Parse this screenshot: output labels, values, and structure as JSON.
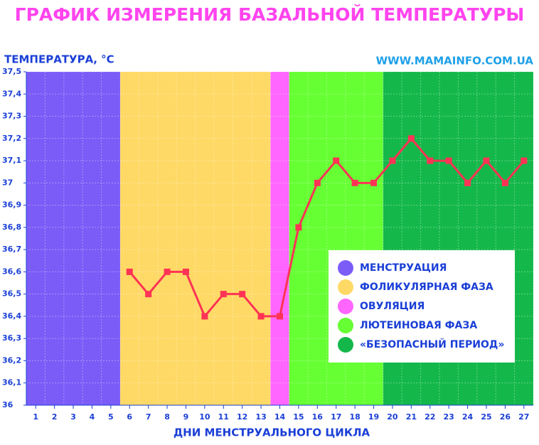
{
  "chart_data": {
    "type": "line",
    "title": "ГРАФИК ИЗМЕРЕНИЯ БАЗАЛЬНОЙ ТЕМПЕРАТУРЫ",
    "y_label": "ТЕМПЕРАТУРА, °С",
    "x_label": "ДНИ МЕНСТРУАЛЬНОГО ЦИКЛА",
    "source": "WWW.MAMAINFO.COM.UA",
    "x": [
      1,
      2,
      3,
      4,
      5,
      6,
      7,
      8,
      9,
      10,
      11,
      12,
      13,
      14,
      15,
      16,
      17,
      18,
      19,
      20,
      21,
      22,
      23,
      24,
      25,
      26,
      27
    ],
    "xlim": [
      0.5,
      27.5
    ],
    "series": [
      {
        "name": "Температура",
        "color": "#ff3355",
        "values": [
          null,
          null,
          null,
          null,
          null,
          36.6,
          36.5,
          36.6,
          36.6,
          36.4,
          36.5,
          36.5,
          36.4,
          36.4,
          36.8,
          37.0,
          37.1,
          37.0,
          37.0,
          37.1,
          37.2,
          37.1,
          37.1,
          37.0,
          37.1,
          37.0,
          37.1
        ]
      }
    ],
    "ylim": [
      36,
      37.5
    ],
    "yticks": [
      36,
      {
        "value": 36.1,
        "label": "36,1"
      },
      {
        "value": 36.2,
        "label": "36,2"
      },
      {
        "value": 36.3,
        "label": "36,3"
      },
      {
        "value": 36.4,
        "label": "36,4"
      },
      {
        "value": 36.5,
        "label": "36,5"
      },
      {
        "value": 36.6,
        "label": "36,6"
      },
      {
        "value": 36.7,
        "label": "36,7"
      },
      {
        "value": 36.8,
        "label": "36,8"
      },
      {
        "value": 36.9,
        "label": "36,9"
      },
      37,
      {
        "value": 37.1,
        "label": "37,1"
      },
      {
        "value": 37.2,
        "label": "37,2"
      },
      {
        "value": 37.3,
        "label": "37,3"
      },
      {
        "value": 37.4,
        "label": "37,4"
      },
      {
        "value": 37.5,
        "label": "37,5"
      }
    ],
    "phases": [
      {
        "name": "МЕНСТРУАЦИЯ",
        "color": "#7b5cf7",
        "start": 1,
        "end": 5
      },
      {
        "name": "ФОЛИКУЛЯРНАЯ ФАЗА",
        "color": "#ffd966",
        "start": 6,
        "end": 13
      },
      {
        "name": "ОВУЛЯЦИЯ",
        "color": "#ff66ff",
        "start": 14,
        "end": 14
      },
      {
        "name": "ЛЮТЕИНОВАЯ ФАЗА",
        "color": "#66ff33",
        "start": 15,
        "end": 19
      },
      {
        "name": "«БЕЗОПАСНЫЙ ПЕРИОД»",
        "color": "#14b84a",
        "start": 20,
        "end": 27
      }
    ],
    "grid": true
  }
}
